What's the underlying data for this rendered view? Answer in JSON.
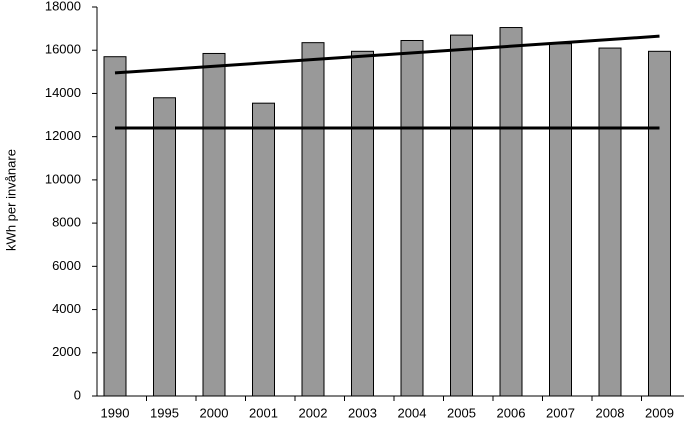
{
  "chart_data": {
    "type": "bar",
    "y_label": "kWh per invånare",
    "categories": [
      "1990",
      "1995",
      "2000",
      "2001",
      "2002",
      "2003",
      "2004",
      "2005",
      "2006",
      "2007",
      "2008",
      "2009"
    ],
    "values": [
      15700,
      13800,
      15850,
      13550,
      16350,
      15950,
      16450,
      16700,
      17050,
      16300,
      16100,
      15950
    ],
    "color": "#999999",
    "ylim": [
      0,
      18000
    ],
    "yticks": [
      0,
      2000,
      4000,
      6000,
      8000,
      10000,
      12000,
      14000,
      16000,
      18000
    ],
    "lines": [
      {
        "color": "#000000",
        "values": [
          14950,
          16650
        ]
      },
      {
        "color": "#000000",
        "values": [
          12400,
          12400
        ]
      }
    ]
  }
}
